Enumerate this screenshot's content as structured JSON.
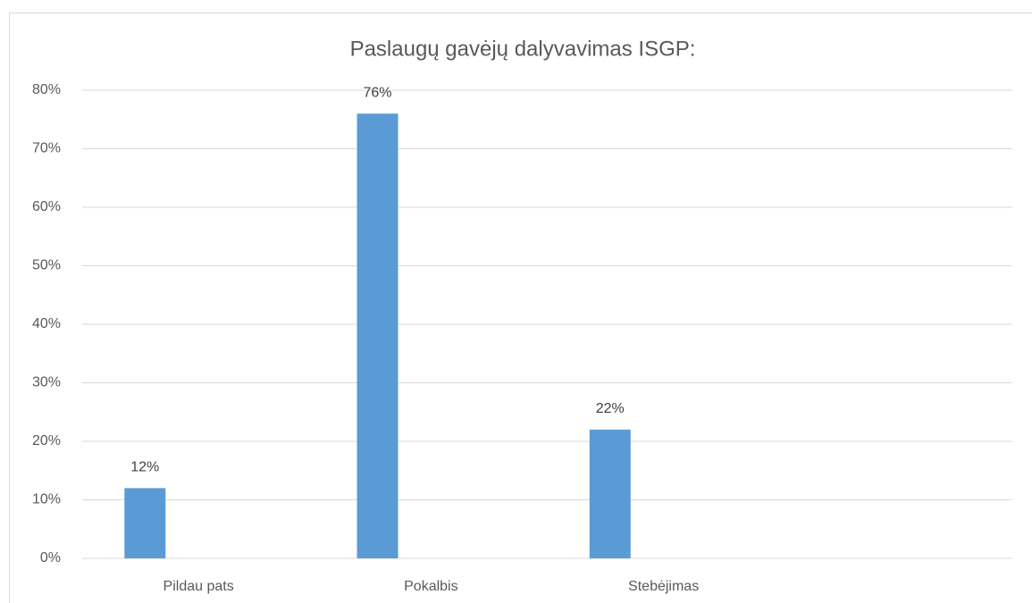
{
  "chart_data": {
    "type": "bar",
    "title": "Paslaugų gavėjų dalyvavimas ISGP:",
    "categories": [
      "Pildau pats",
      "Pokalbis",
      "Stebėjimas",
      null
    ],
    "values": [
      12,
      76,
      22,
      null
    ],
    "value_labels": [
      "12%",
      "76%",
      "22%",
      null
    ],
    "color": "#5b9bd5",
    "ylim": [
      0,
      80
    ],
    "yticks": [
      {
        "value": 0,
        "label": "0%"
      },
      {
        "value": 10,
        "label": "10%"
      },
      {
        "value": 20,
        "label": "20%"
      },
      {
        "value": 30,
        "label": "30%"
      },
      {
        "value": 40,
        "label": "40%"
      },
      {
        "value": 50,
        "label": "50%"
      },
      {
        "value": 60,
        "label": "60%"
      },
      {
        "value": 70,
        "label": "70%"
      },
      {
        "value": 80,
        "label": "80%"
      }
    ],
    "grid": true
  }
}
